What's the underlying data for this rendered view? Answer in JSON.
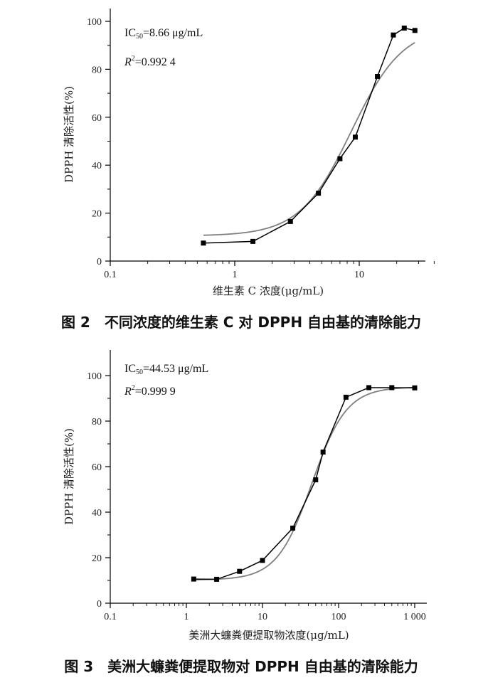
{
  "chart_data": [
    {
      "type": "scatter",
      "x_scale": "log",
      "xlim": [
        0.1,
        40
      ],
      "ylim": [
        0,
        110
      ],
      "xticks": [
        0.1,
        1,
        10
      ],
      "xtick_labels": [
        "0.1",
        "1",
        "10"
      ],
      "yticks": [
        0,
        20,
        40,
        60,
        80,
        100
      ],
      "ytick_labels": [
        "0",
        "20",
        "40",
        "60",
        "80",
        "100"
      ],
      "xlabel": "维生素 C 浓度(μg/mL)",
      "ylabel": "DPPH 清除活性(%)",
      "annotations": {
        "ic50_prefix": "IC",
        "ic50_sub": "50",
        "ic50_value": "=8.66 μg/mL",
        "r2_prefix": "R",
        "r2_sup": "2",
        "r2_value": "=0.992 4"
      },
      "series": [
        {
          "x": [
            0.56,
            1.4,
            2.8,
            4.7,
            7.0,
            9.3,
            14.0,
            18.8,
            23.0,
            28.0
          ],
          "y": [
            7.5,
            8.2,
            16.5,
            28.3,
            42.7,
            51.7,
            77.0,
            94.3,
            97.2,
            96.2
          ]
        }
      ],
      "fit": {
        "ic50": 8.66,
        "bottom": 10.5,
        "top": 98,
        "hill": 2.1
      },
      "grid": false,
      "caption": "图 2　不同浓度的维生素 C 对 DPPH 自由基的清除能力"
    },
    {
      "type": "scatter",
      "x_scale": "log",
      "xlim": [
        0.1,
        1500
      ],
      "ylim": [
        0,
        110
      ],
      "xticks": [
        0.1,
        1,
        10,
        100,
        1000
      ],
      "xtick_labels": [
        "0.1",
        "1",
        "10",
        "100",
        "1 000"
      ],
      "yticks": [
        0,
        20,
        40,
        60,
        80,
        100
      ],
      "ytick_labels": [
        "0",
        "20",
        "40",
        "60",
        "80",
        "100"
      ],
      "xlabel": "美洲大蠊粪便提取物浓度(μg/mL)",
      "ylabel": "DPPH 清除活性(%)",
      "annotations": {
        "ic50_prefix": "IC",
        "ic50_sub": "50",
        "ic50_value": "=44.53 μg/mL",
        "r2_prefix": "R",
        "r2_sup": "2",
        "r2_value": "=0.999 9"
      },
      "series": [
        {
          "x": [
            1.25,
            2.5,
            5,
            10,
            25,
            50,
            62.5,
            125,
            250,
            500,
            1000
          ],
          "y": [
            10.6,
            10.5,
            14.0,
            18.8,
            33.0,
            54.2,
            66.4,
            90.5,
            94.7,
            94.7,
            94.6
          ]
        }
      ],
      "fit": {
        "ic50": 44.53,
        "bottom": 10.2,
        "top": 95,
        "hill": 1.9
      },
      "grid": false,
      "caption": "图 3　美洲大蠊粪便提取物对 DPPH 自由基的清除能力"
    }
  ],
  "colors": {
    "data_line": "#000000",
    "fit_line": "#7f7f7f",
    "axis": "#000000"
  }
}
